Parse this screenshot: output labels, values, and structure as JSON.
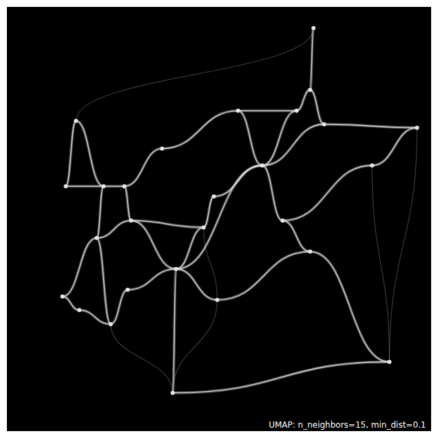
{
  "chart_data": {
    "type": "network",
    "annotation": "UMAP: n_neighbors=15, min_dist=0.1",
    "xlim": [
      0,
      100
    ],
    "ylim": [
      0,
      100
    ],
    "tick_labels": false,
    "grid": false,
    "color": "#e6e6e6",
    "nodes": {
      "x": [
        72.2,
        71.4,
        68.2,
        96.6,
        16.2,
        60.1,
        22.7,
        27.6,
        13.8,
        64.9,
        29.2,
        21.1,
        46.3,
        39.8,
        71.4,
        13.0,
        17.0,
        24.4,
        49.5,
        90.1,
        39.0,
        74.7,
        54.4,
        36.5,
        48.7,
        28.4,
        86.0
      ],
      "y": [
        95.1,
        80.5,
        75.6,
        71.6,
        73.2,
        62.7,
        57.8,
        57.8,
        57.8,
        49.7,
        49.7,
        45.6,
        48.1,
        38.3,
        42.4,
        31.8,
        28.6,
        25.3,
        31.0,
        16.4,
        9.1,
        72.4,
        75.6,
        66.7,
        55.4,
        33.4,
        62.7
      ]
    },
    "edges": [
      [
        0,
        1
      ],
      [
        1,
        2
      ],
      [
        2,
        5
      ],
      [
        1,
        21
      ],
      [
        21,
        3
      ],
      [
        2,
        22
      ],
      [
        22,
        23
      ],
      [
        23,
        7
      ],
      [
        7,
        6
      ],
      [
        6,
        8
      ],
      [
        8,
        4
      ],
      [
        4,
        6
      ],
      [
        7,
        10
      ],
      [
        10,
        11
      ],
      [
        11,
        6
      ],
      [
        11,
        15
      ],
      [
        15,
        16
      ],
      [
        16,
        17
      ],
      [
        11,
        17
      ],
      [
        17,
        25
      ],
      [
        25,
        13
      ],
      [
        10,
        13
      ],
      [
        13,
        5
      ],
      [
        13,
        20
      ],
      [
        13,
        18
      ],
      [
        18,
        14
      ],
      [
        5,
        9
      ],
      [
        9,
        14
      ],
      [
        14,
        19
      ],
      [
        20,
        19
      ],
      [
        12,
        24
      ],
      [
        24,
        5
      ],
      [
        12,
        13
      ],
      [
        10,
        12
      ],
      [
        9,
        26
      ],
      [
        26,
        3
      ],
      [
        5,
        21
      ],
      [
        22,
        5
      ]
    ],
    "faint_edges": [
      [
        4,
        0
      ],
      [
        3,
        19
      ],
      [
        20,
        18
      ],
      [
        26,
        19
      ],
      [
        17,
        20
      ],
      [
        12,
        18
      ]
    ]
  }
}
